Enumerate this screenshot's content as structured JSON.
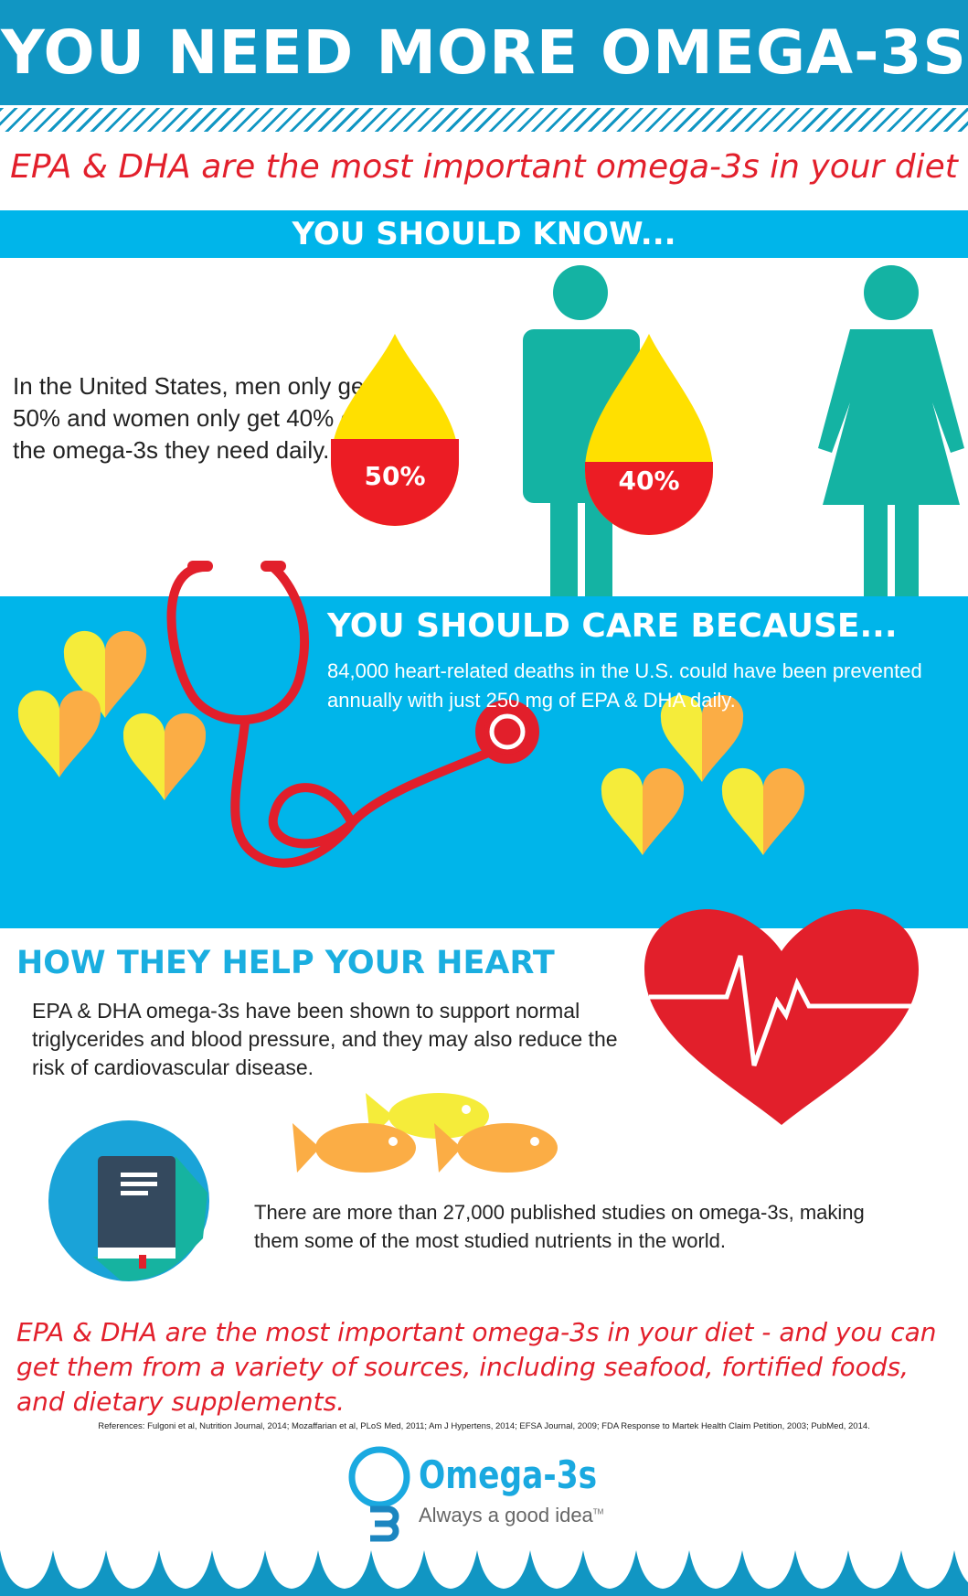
{
  "header": {
    "title": "YOU NEED MORE OMEGA-3S"
  },
  "subtitle": "EPA & DHA are the most important omega-3s in your diet",
  "know": {
    "heading": "YOU SHOULD KNOW...",
    "text": "In the United States, men only get 50% and women only get 40% of the omega-3s they need daily.",
    "men_pct": "50%",
    "women_pct": "40%",
    "men_value": 50,
    "women_value": 40
  },
  "care": {
    "heading": "YOU SHOULD CARE BECAUSE...",
    "text": "84,000 heart-related deaths in the U.S. could have been prevented annually with just 250 mg of EPA & DHA daily."
  },
  "heart": {
    "heading": "HOW THEY HELP YOUR HEART",
    "text": "EPA & DHA omega-3s have been shown to support normal triglycerides and blood pressure, and they may also reduce the risk of cardiovascular disease."
  },
  "studies": {
    "text": "There are more than 27,000 published studies on omega-3s, making them some of the most studied nutrients in the world."
  },
  "closing": "EPA & DHA are the most important omega-3s in your diet - and you can get them from a variety of sources, including seafood, fortified foods, and dietary supplements.",
  "references": "References: Fulgoni et al, Nutrition Journal, 2014; Mozaffarian et al, PLoS Med, 2011; Am J Hypertens, 2014; EFSA Journal, 2009; FDA Response to Martek Health Claim Petition, 2003; PubMed, 2014.",
  "logo": {
    "name": "Omega-3s",
    "tagline": "Always a good idea",
    "tm": "TM"
  },
  "colors": {
    "dark_blue": "#1196c3",
    "cyan": "#00b5ea",
    "red": "#e21f2b",
    "yellow": "#ffe000",
    "teal": "#14b3a3",
    "orange": "#fbad45"
  }
}
